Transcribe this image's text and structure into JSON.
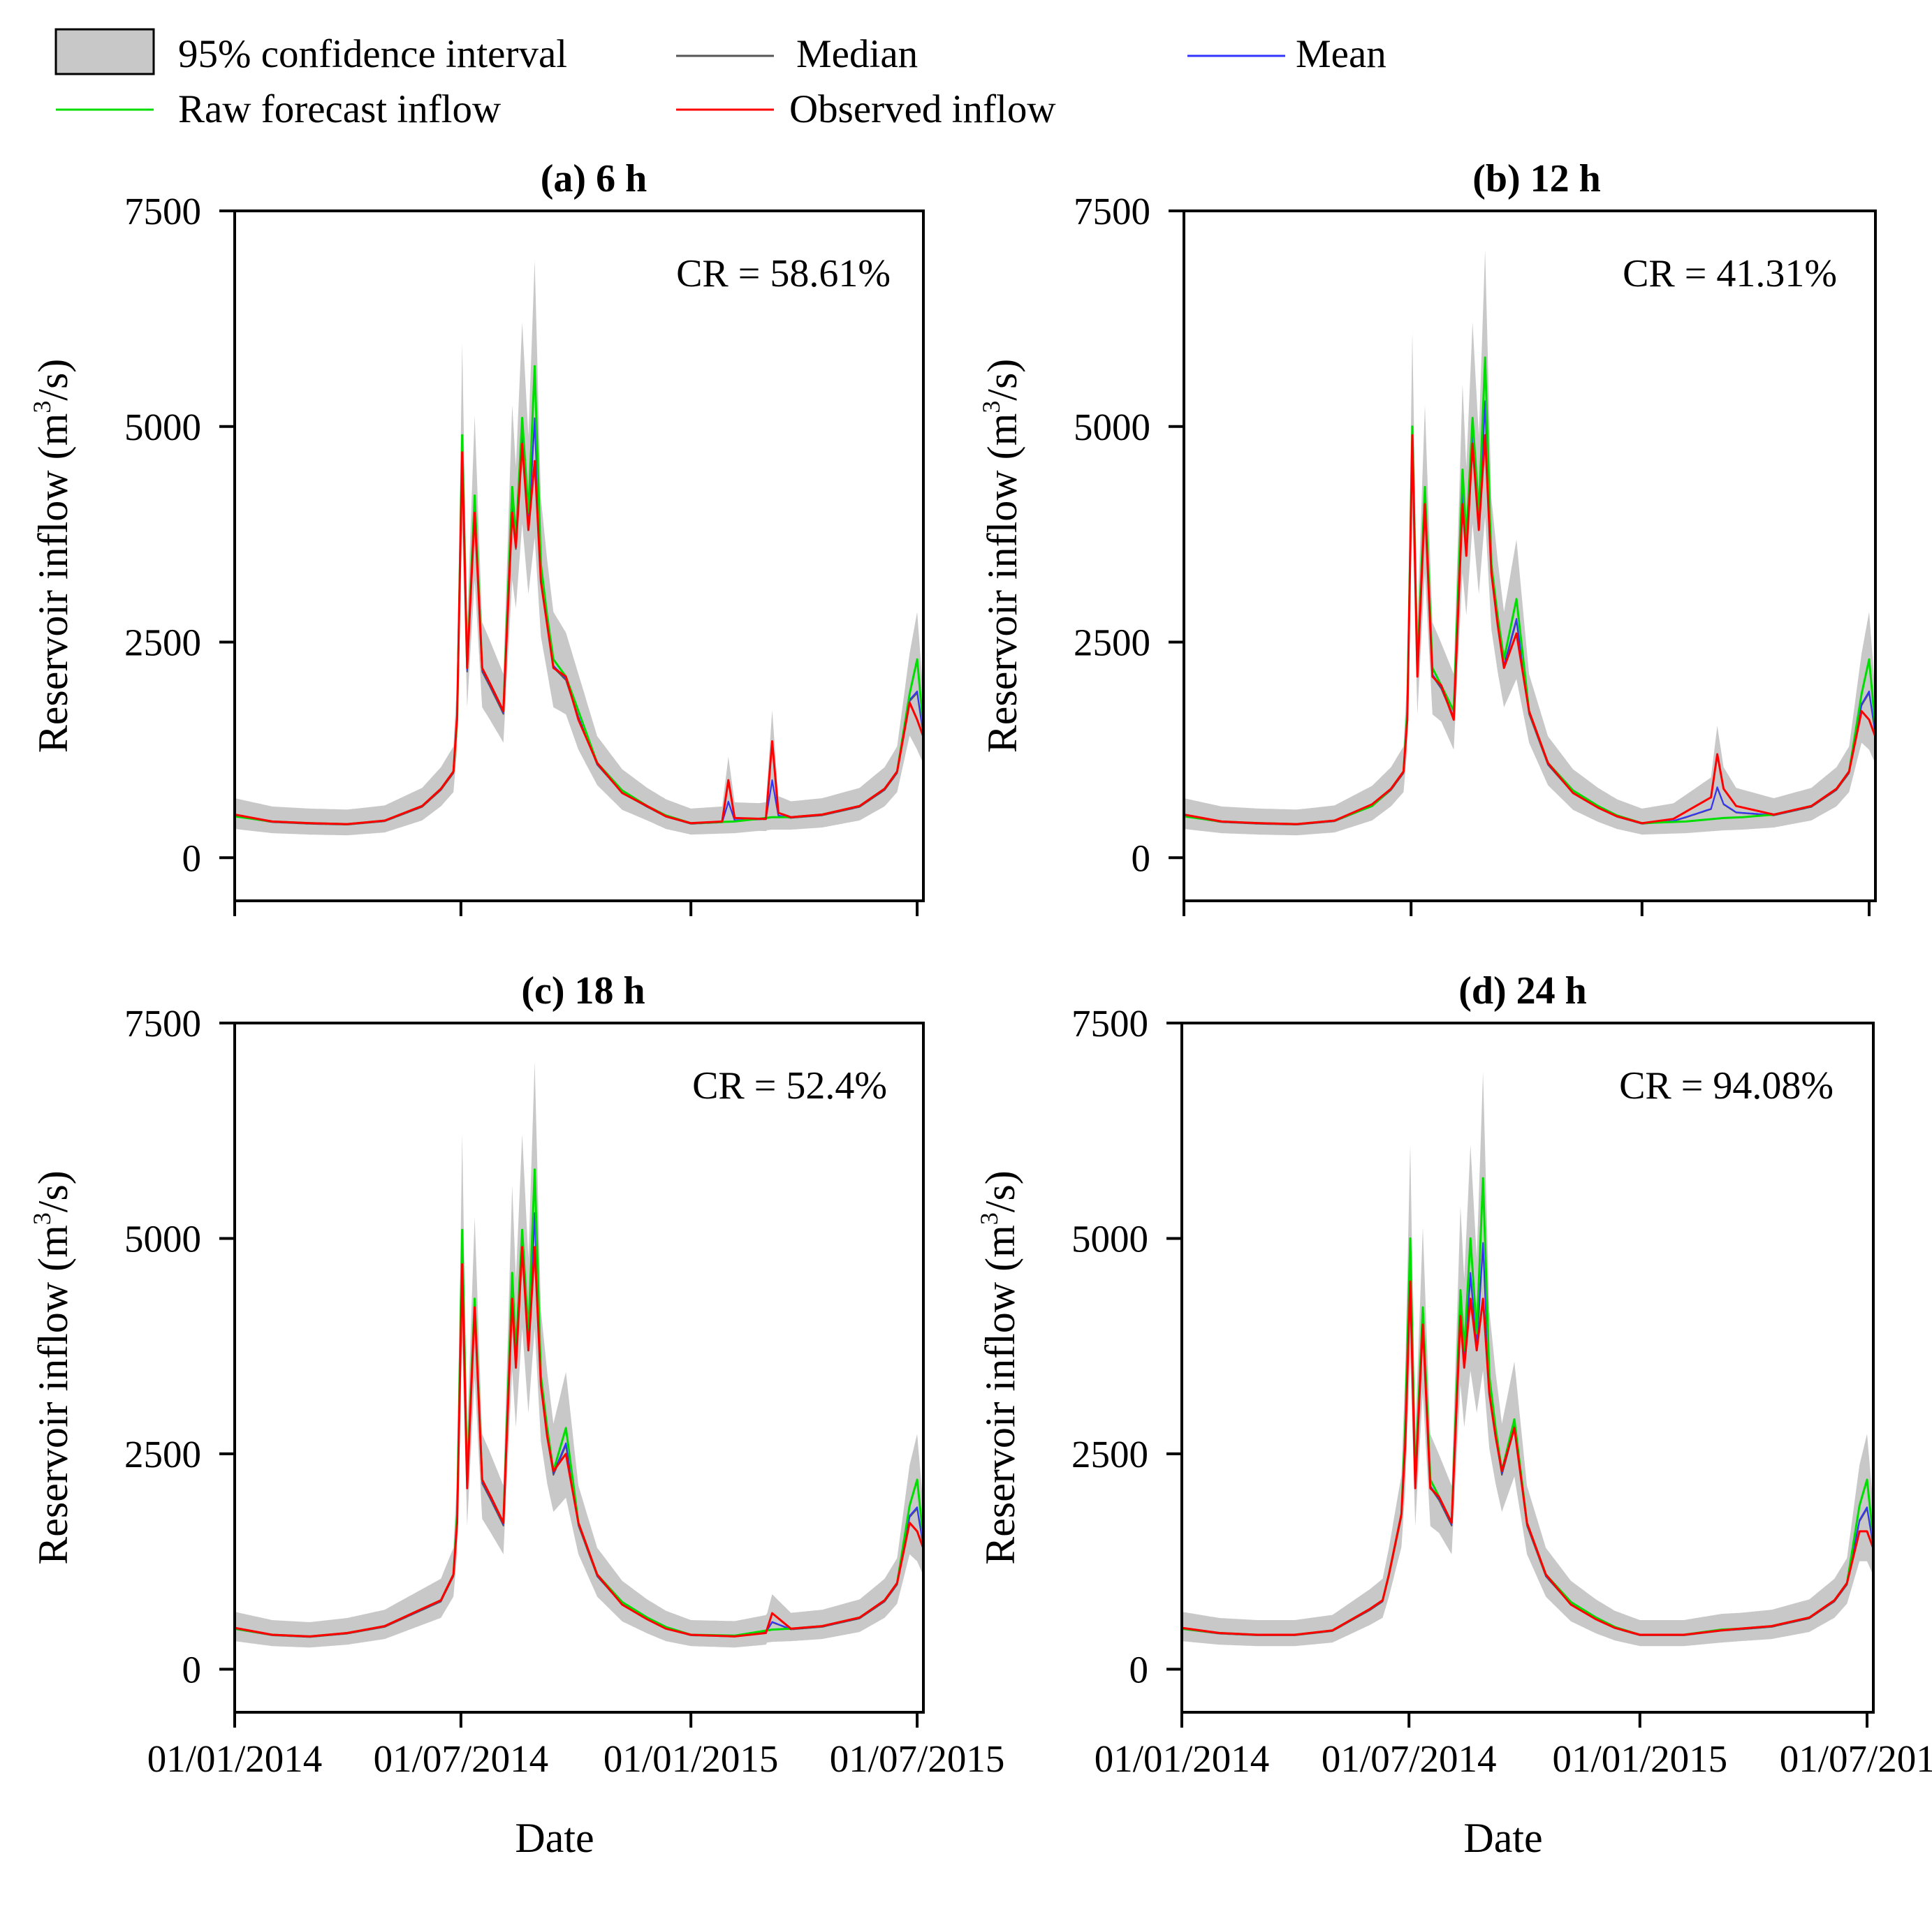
{
  "legend": {
    "ci_label": "95% confidence interval",
    "median_label": "Median",
    "mean_label": "Mean",
    "raw_label": "Raw forecast inflow",
    "observed_label": "Observed inflow"
  },
  "colors": {
    "ci_fill": "#c8c8c8",
    "median": "#555555",
    "mean": "#3333ff",
    "raw": "#00dd00",
    "observed": "#ff0000"
  },
  "axes": {
    "ylabel_main": "Reservoir inflow (m",
    "ylabel_sup": "3",
    "ylabel_end": "/s)",
    "xlabel": "Date",
    "y_ticks": [
      "7500",
      "5000",
      "2500",
      "0"
    ],
    "x_ticks": [
      "01/01/2014",
      "01/07/2014",
      "01/01/2015",
      "01/07/2015"
    ]
  },
  "chart_data": [
    {
      "type": "line",
      "title": "(a) 6 h",
      "cr": "CR = 58.61%",
      "xlabel": "Date",
      "ylabel": "Reservoir inflow (m3/s)",
      "ylim": [
        -500,
        7500
      ],
      "x_unit": "days since 01/01/2014",
      "xlim": [
        0,
        551
      ],
      "x_tick_days": [
        0,
        181,
        365,
        546
      ],
      "series": [
        {
          "name": "Observed inflow",
          "x": [
            0,
            30,
            60,
            90,
            120,
            150,
            165,
            175,
            178,
            182,
            186,
            192,
            198,
            205,
            215,
            222,
            225,
            230,
            235,
            240,
            245,
            250,
            255,
            265,
            275,
            290,
            310,
            330,
            345,
            365,
            390,
            395,
            400,
            425,
            430,
            435,
            445,
            470,
            500,
            520,
            530,
            540,
            546,
            551
          ],
          "values": [
            500,
            420,
            400,
            390,
            430,
            600,
            800,
            1000,
            1650,
            4700,
            2200,
            4000,
            2200,
            2000,
            1700,
            4000,
            3600,
            4800,
            3800,
            4600,
            3200,
            2700,
            2200,
            2100,
            1600,
            1100,
            750,
            600,
            480,
            400,
            420,
            900,
            460,
            450,
            1350,
            520,
            470,
            500,
            600,
            800,
            1000,
            1800,
            1600,
            1400
          ]
        },
        {
          "name": "Raw forecast inflow",
          "x": [
            0,
            30,
            60,
            90,
            120,
            150,
            165,
            175,
            178,
            182,
            186,
            192,
            198,
            205,
            215,
            222,
            225,
            230,
            235,
            240,
            245,
            250,
            255,
            265,
            275,
            290,
            310,
            330,
            345,
            365,
            400,
            430,
            445,
            470,
            500,
            520,
            530,
            540,
            546,
            551
          ],
          "values": [
            480,
            420,
            400,
            390,
            430,
            600,
            800,
            1000,
            1600,
            4900,
            2200,
            4200,
            2200,
            2000,
            1700,
            4300,
            3700,
            5100,
            4000,
            5700,
            3400,
            2800,
            2300,
            2100,
            1700,
            1100,
            780,
            600,
            490,
            400,
            420,
            470,
            470,
            500,
            600,
            800,
            1000,
            1900,
            2300,
            1500
          ]
        }
      ]
    },
    {
      "type": "line",
      "title": "(b) 12 h",
      "cr": "CR = 41.31%",
      "xlabel": "Date",
      "ylabel": "Reservoir inflow (m3/s)",
      "ylim": [
        -500,
        7500
      ],
      "x_unit": "days since 01/01/2014",
      "xlim": [
        0,
        551
      ],
      "x_tick_days": [
        0,
        181,
        365,
        546
      ],
      "series": [
        {
          "name": "Observed inflow",
          "x": [
            0,
            30,
            60,
            90,
            120,
            150,
            165,
            175,
            178,
            182,
            186,
            192,
            198,
            205,
            215,
            222,
            225,
            230,
            235,
            240,
            245,
            250,
            255,
            265,
            275,
            290,
            310,
            330,
            345,
            365,
            390,
            420,
            425,
            430,
            440,
            470,
            500,
            520,
            530,
            540,
            546,
            551
          ],
          "values": [
            500,
            420,
            400,
            390,
            430,
            620,
            800,
            1000,
            1600,
            4900,
            2100,
            4100,
            2100,
            2000,
            1600,
            4100,
            3500,
            4800,
            3800,
            4900,
            3300,
            2700,
            2200,
            2600,
            1700,
            1100,
            750,
            580,
            480,
            400,
            450,
            700,
            1200,
            800,
            600,
            500,
            600,
            800,
            1000,
            1700,
            1600,
            1400
          ]
        },
        {
          "name": "Raw forecast inflow",
          "x": [
            0,
            30,
            60,
            90,
            120,
            150,
            165,
            175,
            178,
            182,
            186,
            192,
            198,
            205,
            215,
            222,
            225,
            230,
            235,
            240,
            245,
            250,
            255,
            265,
            275,
            290,
            310,
            330,
            345,
            365,
            400,
            430,
            445,
            470,
            500,
            520,
            530,
            540,
            546,
            551
          ],
          "values": [
            480,
            420,
            400,
            390,
            430,
            600,
            800,
            1000,
            1700,
            5000,
            2200,
            4300,
            2200,
            2000,
            1700,
            4500,
            3700,
            5100,
            4000,
            5800,
            3400,
            2800,
            2300,
            3000,
            1700,
            1100,
            780,
            600,
            490,
            400,
            420,
            460,
            470,
            500,
            600,
            800,
            1000,
            1900,
            2300,
            1500
          ]
        }
      ]
    },
    {
      "type": "line",
      "title": "(c) 18 h",
      "cr": "CR = 52.4%",
      "xlabel": "Date",
      "ylabel": "Reservoir inflow (m3/s)",
      "ylim": [
        -500,
        7500
      ],
      "x_unit": "days since 01/01/2014",
      "xlim": [
        0,
        551
      ],
      "x_tick_days": [
        0,
        181,
        365,
        546
      ],
      "series": [
        {
          "name": "Observed inflow",
          "x": [
            0,
            30,
            60,
            90,
            120,
            150,
            165,
            175,
            178,
            182,
            186,
            192,
            198,
            205,
            215,
            222,
            225,
            230,
            235,
            240,
            245,
            250,
            255,
            265,
            275,
            290,
            310,
            330,
            345,
            365,
            400,
            425,
            430,
            445,
            470,
            500,
            520,
            530,
            540,
            546,
            551
          ],
          "values": [
            480,
            400,
            380,
            420,
            500,
            700,
            800,
            1100,
            1700,
            4700,
            2100,
            4200,
            2200,
            2000,
            1700,
            4300,
            3500,
            4900,
            3700,
            4900,
            3300,
            2700,
            2300,
            2500,
            1700,
            1100,
            750,
            580,
            470,
            400,
            380,
            420,
            650,
            470,
            500,
            600,
            800,
            1000,
            1700,
            1600,
            1400
          ]
        },
        {
          "name": "Raw forecast inflow",
          "x": [
            0,
            30,
            60,
            90,
            120,
            150,
            165,
            175,
            178,
            182,
            186,
            192,
            198,
            205,
            215,
            222,
            225,
            230,
            235,
            240,
            245,
            250,
            255,
            265,
            275,
            290,
            310,
            330,
            345,
            365,
            400,
            430,
            445,
            470,
            500,
            520,
            530,
            540,
            546,
            551
          ],
          "values": [
            470,
            400,
            380,
            420,
            500,
            700,
            800,
            1100,
            1800,
            5100,
            2200,
            4300,
            2200,
            2000,
            1700,
            4600,
            3700,
            5100,
            3900,
            5800,
            3400,
            2800,
            2300,
            2800,
            1700,
            1100,
            780,
            600,
            490,
            400,
            390,
            460,
            470,
            500,
            600,
            800,
            1000,
            1900,
            2200,
            1500
          ]
        }
      ]
    },
    {
      "type": "line",
      "title": "(d) 24 h",
      "cr": "CR = 94.08%",
      "xlabel": "Date",
      "ylabel": "Reservoir inflow (m3/s)",
      "ylim": [
        -500,
        7500
      ],
      "x_unit": "days since 01/01/2014",
      "xlim": [
        0,
        551
      ],
      "x_tick_days": [
        0,
        181,
        365,
        546
      ],
      "series": [
        {
          "name": "Observed inflow",
          "x": [
            0,
            30,
            60,
            90,
            120,
            150,
            160,
            165,
            175,
            178,
            182,
            186,
            192,
            198,
            205,
            215,
            222,
            225,
            230,
            235,
            240,
            245,
            250,
            255,
            265,
            275,
            290,
            310,
            330,
            345,
            365,
            400,
            430,
            445,
            470,
            500,
            520,
            530,
            540,
            546,
            551
          ],
          "values": [
            480,
            420,
            400,
            400,
            450,
            700,
            800,
            1100,
            1800,
            2600,
            4500,
            2100,
            4000,
            2100,
            2000,
            1700,
            4100,
            3500,
            4300,
            3700,
            4300,
            3200,
            2700,
            2300,
            2800,
            1700,
            1100,
            750,
            580,
            480,
            400,
            400,
            450,
            470,
            500,
            600,
            800,
            1000,
            1600,
            1600,
            1400
          ]
        },
        {
          "name": "Raw forecast inflow",
          "x": [
            0,
            30,
            60,
            90,
            120,
            150,
            160,
            165,
            175,
            178,
            182,
            186,
            192,
            198,
            205,
            215,
            222,
            225,
            230,
            235,
            240,
            245,
            250,
            255,
            265,
            275,
            290,
            310,
            330,
            345,
            365,
            400,
            430,
            445,
            470,
            500,
            520,
            530,
            540,
            546,
            551
          ],
          "values": [
            470,
            420,
            400,
            400,
            450,
            700,
            800,
            1100,
            1800,
            2800,
            5000,
            2200,
            4200,
            2200,
            2000,
            1700,
            4400,
            3700,
            5000,
            3900,
            5700,
            3400,
            2800,
            2300,
            2900,
            1700,
            1100,
            780,
            600,
            490,
            400,
            400,
            460,
            470,
            500,
            600,
            800,
            1000,
            1900,
            2200,
            1500
          ]
        }
      ]
    }
  ]
}
